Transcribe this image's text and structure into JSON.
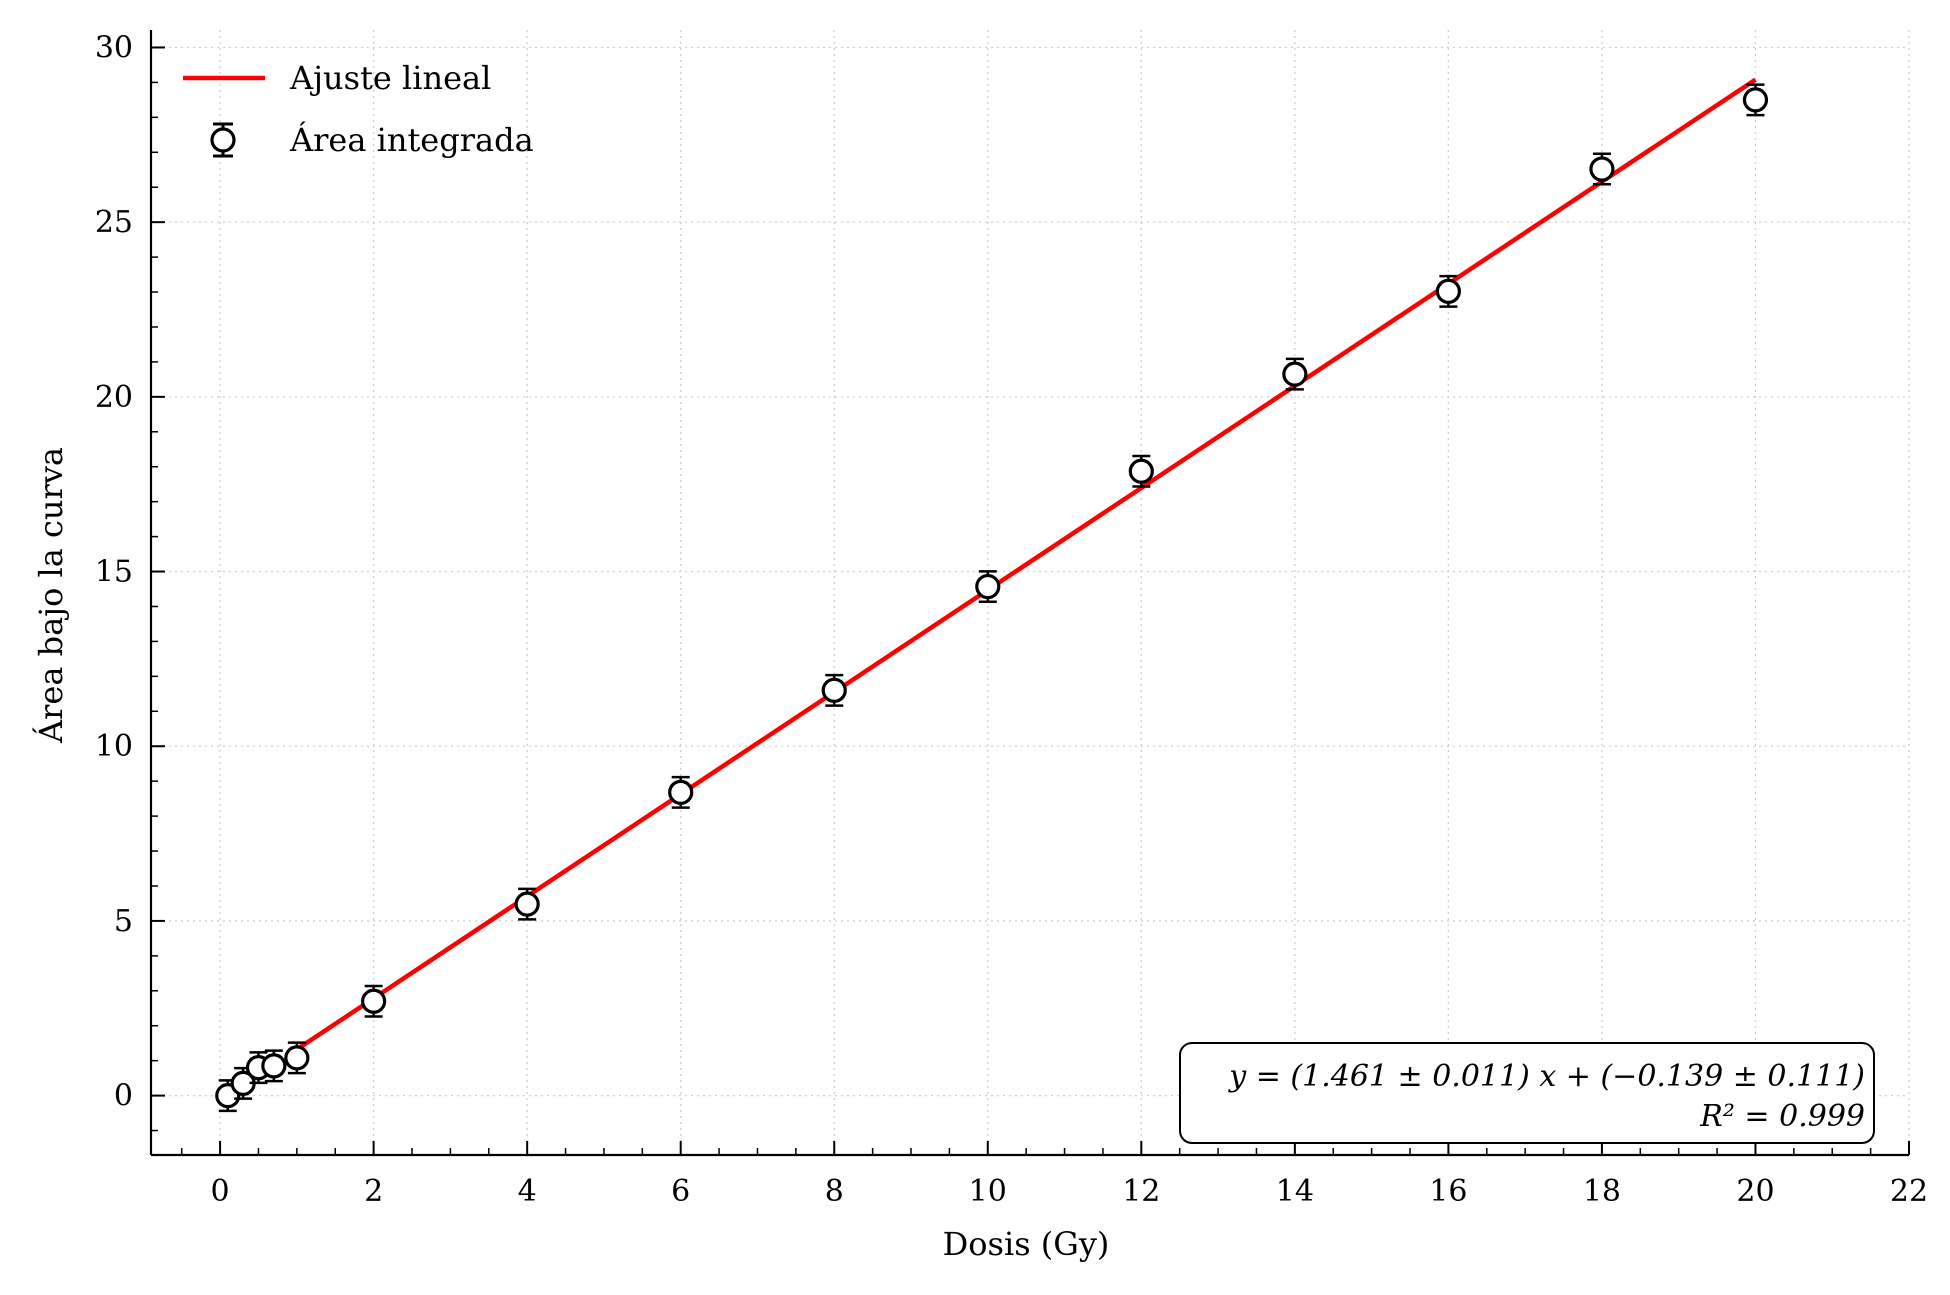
{
  "chart_data": {
    "type": "scatter",
    "xlabel": "Dosis (Gy)",
    "ylabel": "Área bajo la curva",
    "xlim": [
      -0.9,
      22
    ],
    "ylim": [
      -1.7,
      30.5
    ],
    "xticks": [
      0,
      2,
      4,
      6,
      8,
      10,
      12,
      14,
      16,
      18,
      20,
      22
    ],
    "yticks": [
      0,
      5,
      10,
      15,
      20,
      25,
      30
    ],
    "xtick_labels": [
      "0",
      "2",
      "4",
      "6",
      "8",
      "10",
      "12",
      "14",
      "16",
      "18",
      "20",
      "22"
    ],
    "ytick_labels": [
      "0",
      "5",
      "10",
      "15",
      "20",
      "25",
      "30"
    ],
    "grid": true,
    "legend_position": "top-left",
    "series": [
      {
        "name": "Área integrada",
        "kind": "errorbar-markers",
        "color": "#000000",
        "x": [
          0.1,
          0.3,
          0.5,
          0.7,
          1,
          2,
          4,
          6,
          8,
          10,
          12,
          14,
          16,
          18,
          20
        ],
        "y": [
          0.0,
          0.35,
          0.8,
          0.85,
          1.08,
          2.7,
          5.48,
          8.68,
          11.6,
          14.57,
          17.87,
          20.65,
          23.02,
          26.52,
          28.5
        ],
        "yerr": [
          0.15,
          0.15,
          0.15,
          0.15,
          0.15,
          0.15,
          0.15,
          0.15,
          0.15,
          0.15,
          0.15,
          0.15,
          0.15,
          0.15,
          0.15
        ]
      },
      {
        "name": "Ajuste lineal",
        "kind": "line",
        "color": "#ff0000",
        "x": [
          1,
          20
        ],
        "y": [
          1.322,
          29.081
        ]
      }
    ],
    "annotation": {
      "line1": "y = (1.461 ± 0.011) x + (−0.139 ± 0.111)",
      "line2": "R² = 0.999"
    }
  }
}
